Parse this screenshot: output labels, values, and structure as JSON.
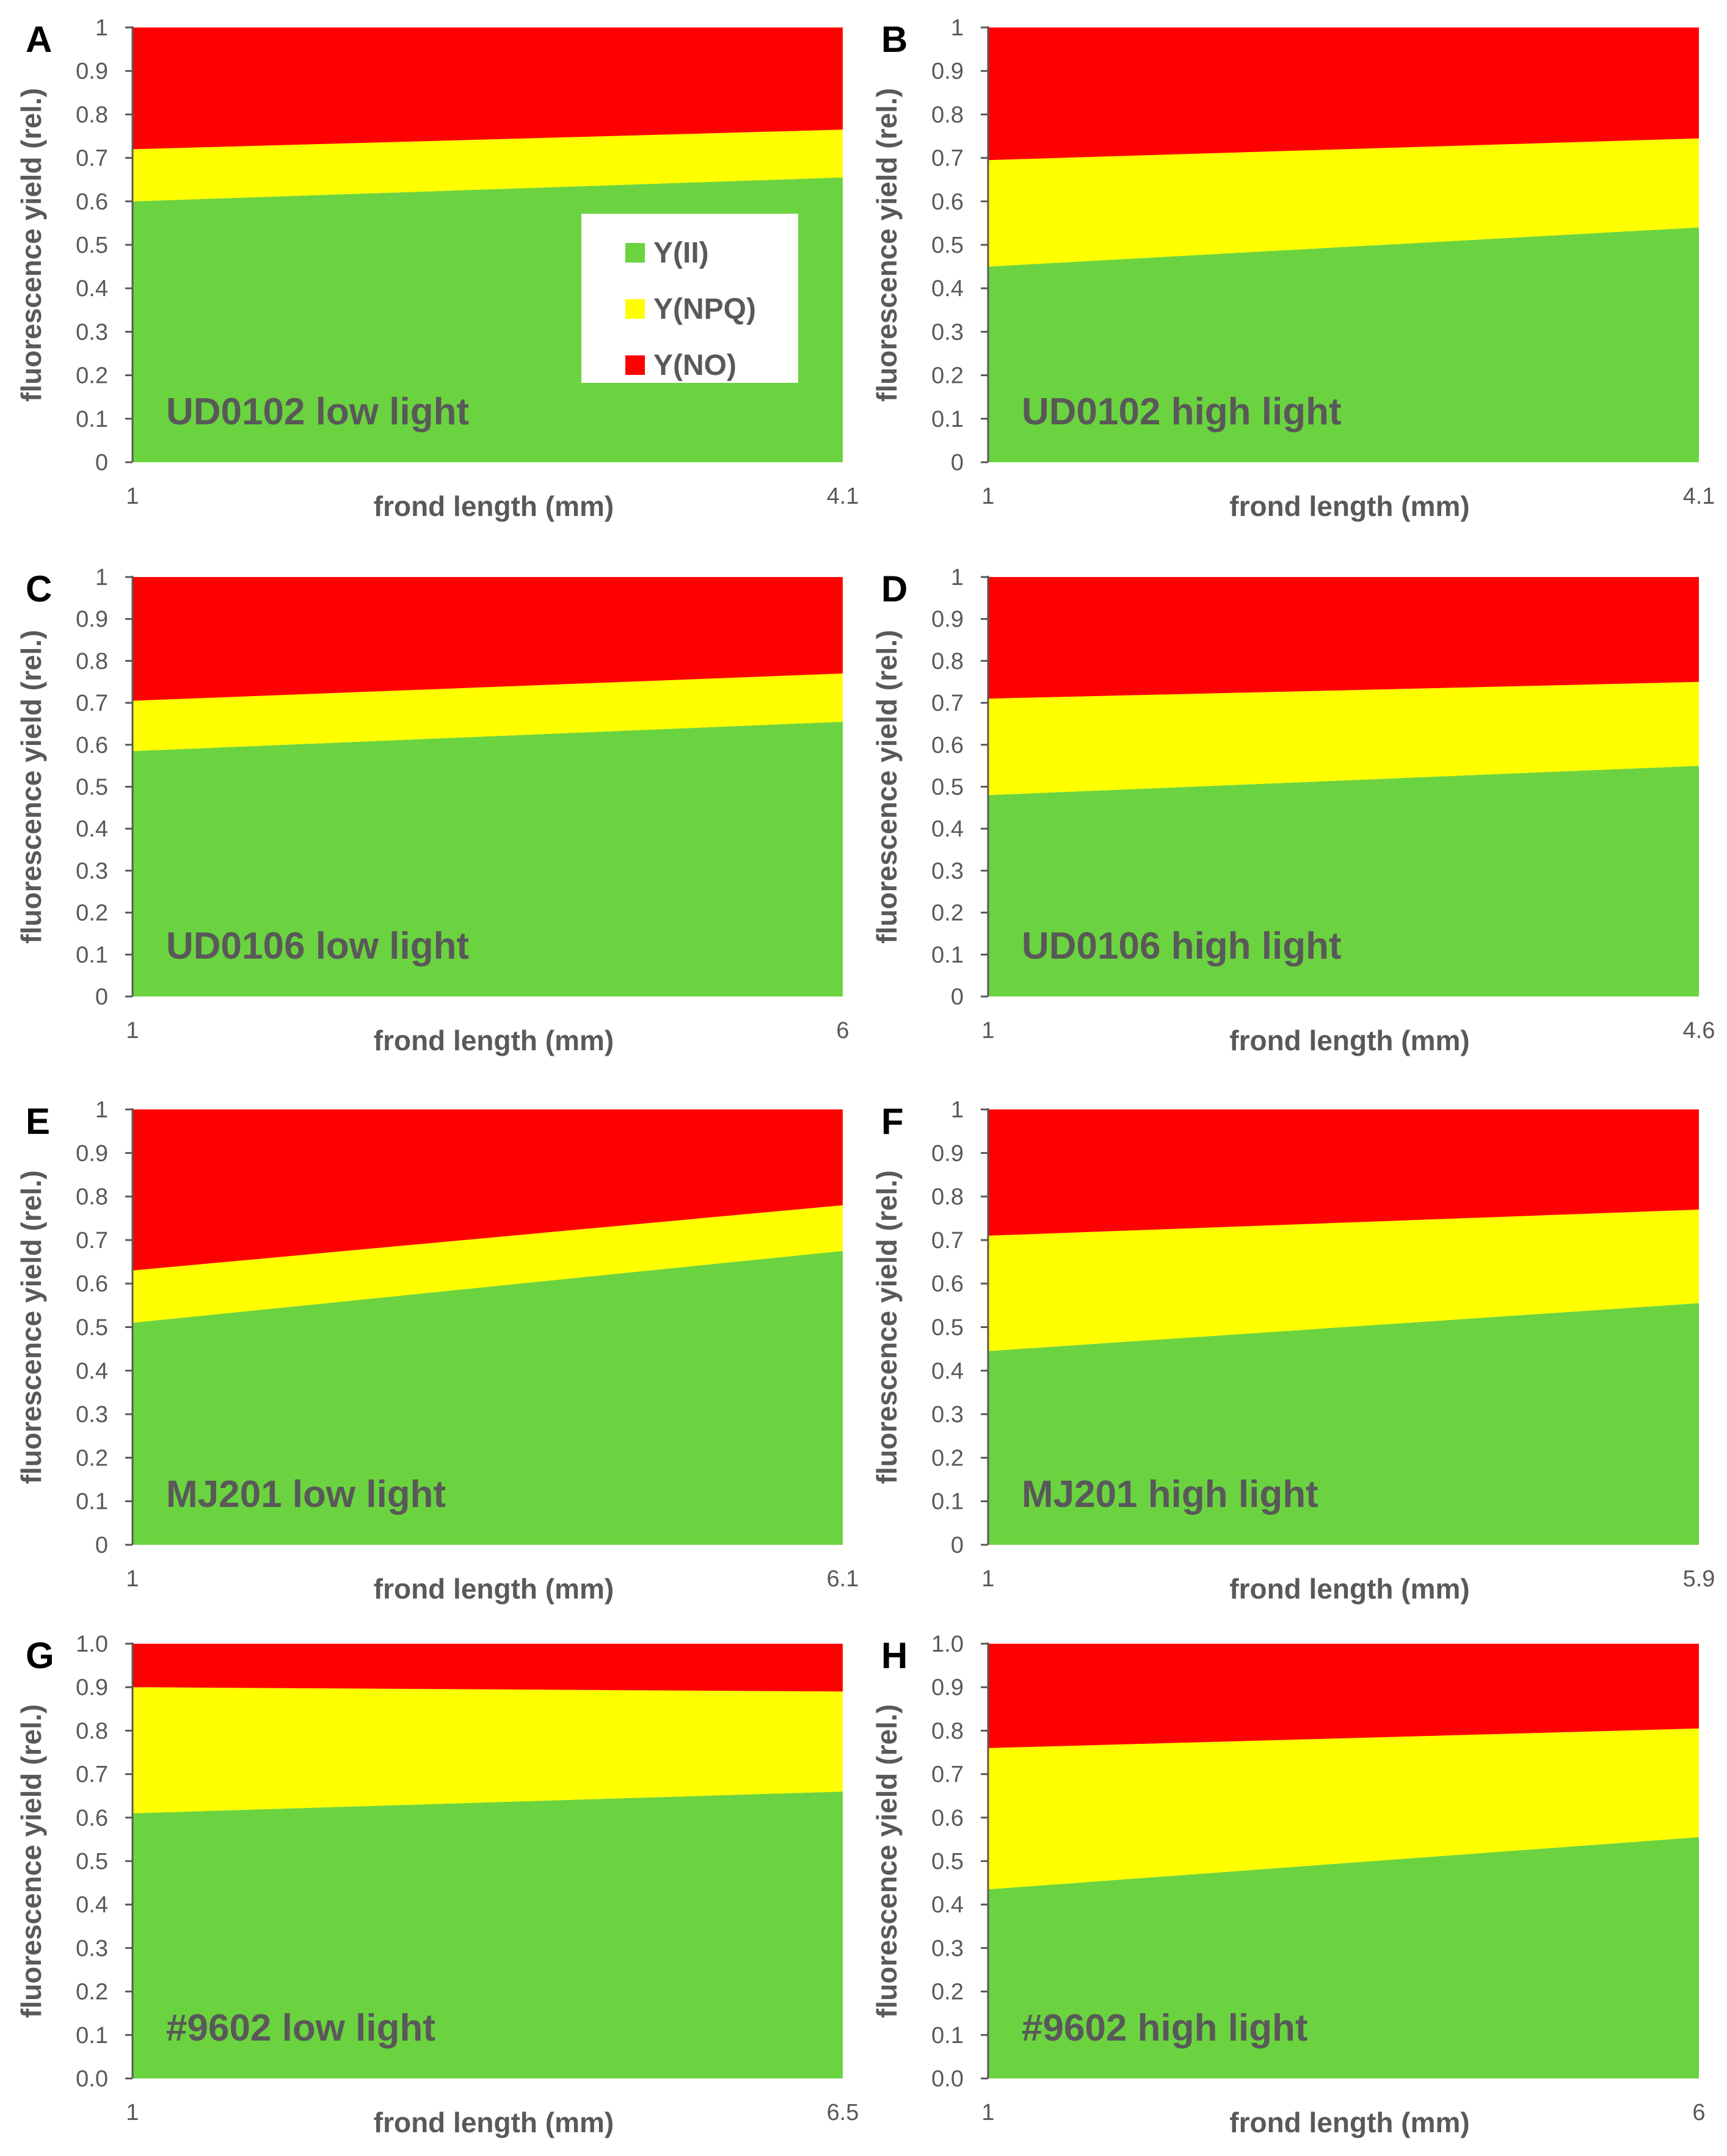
{
  "figure": {
    "series_names": [
      "Y(II)",
      "Y(NPQ)",
      "Y(NO)"
    ],
    "colors": {
      "Y(II)": "#6bd33f",
      "Y(NPQ)": "#ffff00",
      "Y(NO)": "#ff0000"
    }
  },
  "chart_data": [
    {
      "panel": "A",
      "type": "area",
      "stacked": true,
      "label": "UD0102 low light",
      "x": [
        1,
        4.1
      ],
      "xlabel": "frond length (mm)",
      "ylabel": "fluorescence yield (rel.)",
      "yticks": [
        "0",
        "0.1",
        "0.2",
        "0.3",
        "0.4",
        "0.5",
        "0.6",
        "0.7",
        "0.8",
        "0.9",
        "1"
      ],
      "ylim": [
        0,
        1
      ],
      "series": [
        {
          "name": "Y(II)",
          "values": [
            0.6,
            0.655
          ]
        },
        {
          "name": "Y(NPQ)",
          "values": [
            0.12,
            0.11
          ]
        },
        {
          "name": "Y(NO)",
          "values": [
            0.28,
            0.235
          ]
        }
      ],
      "legend": true
    },
    {
      "panel": "B",
      "type": "area",
      "stacked": true,
      "label": "UD0102 high light",
      "x": [
        1,
        4.1
      ],
      "xlabel": "frond length (mm)",
      "ylabel": "fluorescence yield (rel.)",
      "yticks": [
        "0",
        "0.1",
        "0.2",
        "0.3",
        "0.4",
        "0.5",
        "0.6",
        "0.7",
        "0.8",
        "0.9",
        "1"
      ],
      "ylim": [
        0,
        1
      ],
      "series": [
        {
          "name": "Y(II)",
          "values": [
            0.45,
            0.54
          ]
        },
        {
          "name": "Y(NPQ)",
          "values": [
            0.245,
            0.205
          ]
        },
        {
          "name": "Y(NO)",
          "values": [
            0.305,
            0.255
          ]
        }
      ],
      "legend": false
    },
    {
      "panel": "C",
      "type": "area",
      "stacked": true,
      "label": "UD0106 low light",
      "x": [
        1,
        6
      ],
      "xlabel": "frond length (mm)",
      "ylabel": "fluorescence yield (rel.)",
      "yticks": [
        "0",
        "0.1",
        "0.2",
        "0.3",
        "0.4",
        "0.5",
        "0.6",
        "0.7",
        "0.8",
        "0.9",
        "1"
      ],
      "ylim": [
        0,
        1
      ],
      "series": [
        {
          "name": "Y(II)",
          "values": [
            0.585,
            0.655
          ]
        },
        {
          "name": "Y(NPQ)",
          "values": [
            0.12,
            0.115
          ]
        },
        {
          "name": "Y(NO)",
          "values": [
            0.295,
            0.23
          ]
        }
      ],
      "legend": false
    },
    {
      "panel": "D",
      "type": "area",
      "stacked": true,
      "label": "UD0106 high light",
      "x": [
        1,
        4.6
      ],
      "xlabel": "frond length (mm)",
      "ylabel": "fluorescence yield (rel.)",
      "yticks": [
        "0",
        "0.1",
        "0.2",
        "0.3",
        "0.4",
        "0.5",
        "0.6",
        "0.7",
        "0.8",
        "0.9",
        "1"
      ],
      "ylim": [
        0,
        1
      ],
      "series": [
        {
          "name": "Y(II)",
          "values": [
            0.48,
            0.55
          ]
        },
        {
          "name": "Y(NPQ)",
          "values": [
            0.23,
            0.2
          ]
        },
        {
          "name": "Y(NO)",
          "values": [
            0.29,
            0.25
          ]
        }
      ],
      "legend": false
    },
    {
      "panel": "E",
      "type": "area",
      "stacked": true,
      "label": "MJ201 low light",
      "x": [
        1,
        6.1
      ],
      "xlabel": "frond length (mm)",
      "ylabel": "fluorescence yield (rel.)",
      "yticks": [
        "0",
        "0.1",
        "0.2",
        "0.3",
        "0.4",
        "0.5",
        "0.6",
        "0.7",
        "0.8",
        "0.9",
        "1"
      ],
      "ylim": [
        0,
        1
      ],
      "series": [
        {
          "name": "Y(II)",
          "values": [
            0.51,
            0.675
          ]
        },
        {
          "name": "Y(NPQ)",
          "values": [
            0.12,
            0.105
          ]
        },
        {
          "name": "Y(NO)",
          "values": [
            0.37,
            0.22
          ]
        }
      ],
      "legend": false
    },
    {
      "panel": "F",
      "type": "area",
      "stacked": true,
      "label": "MJ201 high light",
      "x": [
        1,
        5.9
      ],
      "xlabel": "frond length (mm)",
      "ylabel": "fluorescence yield (rel.)",
      "yticks": [
        "0",
        "0.1",
        "0.2",
        "0.3",
        "0.4",
        "0.5",
        "0.6",
        "0.7",
        "0.8",
        "0.9",
        "1"
      ],
      "ylim": [
        0,
        1
      ],
      "series": [
        {
          "name": "Y(II)",
          "values": [
            0.445,
            0.555
          ]
        },
        {
          "name": "Y(NPQ)",
          "values": [
            0.265,
            0.215
          ]
        },
        {
          "name": "Y(NO)",
          "values": [
            0.29,
            0.23
          ]
        }
      ],
      "legend": false
    },
    {
      "panel": "G",
      "type": "area",
      "stacked": true,
      "label": "#9602 low light",
      "x": [
        1,
        6.5
      ],
      "xlabel": "frond length (mm)",
      "ylabel": "fluorescence yield (rel.)",
      "yticks": [
        "0.0",
        "0.1",
        "0.2",
        "0.3",
        "0.4",
        "0.5",
        "0.6",
        "0.7",
        "0.8",
        "0.9",
        "1.0"
      ],
      "ylim": [
        0,
        1
      ],
      "series": [
        {
          "name": "Y(II)",
          "values": [
            0.61,
            0.66
          ]
        },
        {
          "name": "Y(NPQ)",
          "values": [
            0.29,
            0.23
          ]
        },
        {
          "name": "Y(NO)",
          "values": [
            0.1,
            0.11
          ]
        }
      ],
      "legend": false
    },
    {
      "panel": "H",
      "type": "area",
      "stacked": true,
      "label": "#9602 high light",
      "x": [
        1,
        6
      ],
      "xlabel": "frond length (mm)",
      "ylabel": "fluorescence yield (rel.)",
      "yticks": [
        "0.0",
        "0.1",
        "0.2",
        "0.3",
        "0.4",
        "0.5",
        "0.6",
        "0.7",
        "0.8",
        "0.9",
        "1.0"
      ],
      "ylim": [
        0,
        1
      ],
      "series": [
        {
          "name": "Y(II)",
          "values": [
            0.435,
            0.555
          ]
        },
        {
          "name": "Y(NPQ)",
          "values": [
            0.325,
            0.25
          ]
        },
        {
          "name": "Y(NO)",
          "values": [
            0.24,
            0.195
          ]
        }
      ],
      "legend": false
    }
  ]
}
